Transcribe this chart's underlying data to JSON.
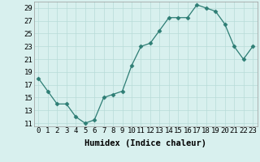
{
  "x": [
    0,
    1,
    2,
    3,
    4,
    5,
    6,
    7,
    8,
    9,
    10,
    11,
    12,
    13,
    14,
    15,
    16,
    17,
    18,
    19,
    20,
    21,
    22,
    23
  ],
  "y": [
    18,
    16,
    14,
    14,
    12,
    11,
    11.5,
    15,
    15.5,
    16,
    20,
    23,
    23.5,
    25.5,
    27.5,
    27.5,
    27.5,
    29.5,
    29,
    28.5,
    26.5,
    23,
    21,
    23
  ],
  "line_color": "#2d7d74",
  "marker": "D",
  "marker_size": 2.5,
  "bg_color": "#d8f0ee",
  "grid_color": "#b8dbd8",
  "xlabel": "Humidex (Indice chaleur)",
  "xlim": [
    -0.5,
    23.5
  ],
  "ylim": [
    10.5,
    30
  ],
  "yticks": [
    11,
    13,
    15,
    17,
    19,
    21,
    23,
    25,
    27,
    29
  ],
  "xticks": [
    0,
    1,
    2,
    3,
    4,
    5,
    6,
    7,
    8,
    9,
    10,
    11,
    12,
    13,
    14,
    15,
    16,
    17,
    18,
    19,
    20,
    21,
    22,
    23
  ],
  "xlabel_fontsize": 7.5,
  "tick_fontsize": 6.5
}
